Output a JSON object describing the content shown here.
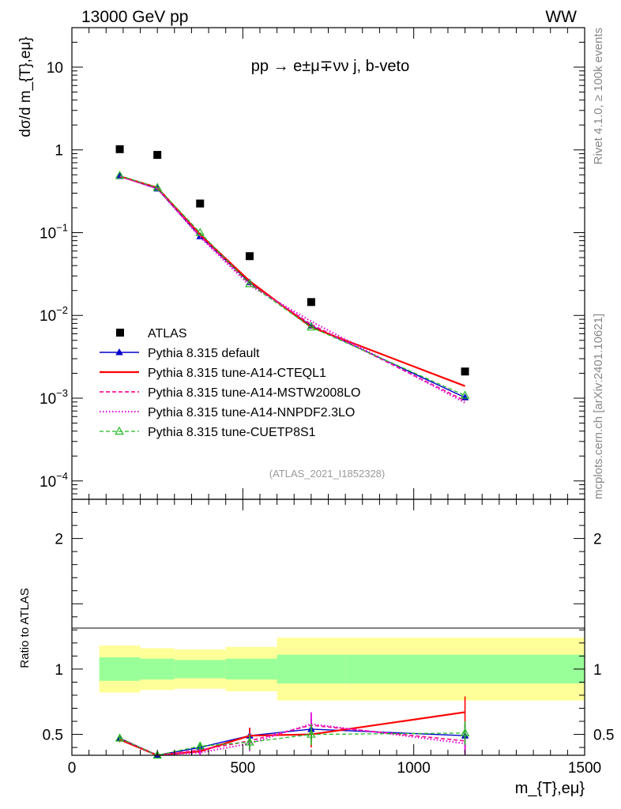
{
  "header": {
    "energy_label": "13000 GeV pp",
    "process_label": "WW"
  },
  "side_text": {
    "rivet": "Rivet 4.1.0, ≥ 100k events",
    "mcplots": "mcplots.cern.ch [arXiv:2401.10621]"
  },
  "chart_data": {
    "type": "line",
    "title": "pp → e±μ∓νν j, b-veto",
    "analysis_id": "(ATLAS_2021_I1852328)",
    "xlabel": "m_{T},eμ}",
    "ylabel_main": "dσ/d m_{T},eμ}",
    "ylabel_ratio": "Ratio to ATLAS",
    "xlim": [
      0,
      1500
    ],
    "ylim_main": [
      6e-05,
      30
    ],
    "ylim_ratio": [
      0.34,
      2.3
    ],
    "x_ticks": [
      0,
      500,
      1000,
      1500
    ],
    "x_tick_labels": [
      "0",
      "500",
      "1000",
      "1500"
    ],
    "y_tick_labels_main": [
      {
        "base": "10",
        "exp": "",
        "value": 10
      },
      {
        "base": "1",
        "exp": "",
        "value": 1
      },
      {
        "base": "10",
        "exp": "−1",
        "value": 0.1
      },
      {
        "base": "10",
        "exp": "−2",
        "value": 0.01
      },
      {
        "base": "10",
        "exp": "−3",
        "value": 0.001
      },
      {
        "base": "10",
        "exp": "−4",
        "value": 0.0001
      }
    ],
    "y_ticks_ratio": [
      0.5,
      1,
      2
    ],
    "y_tick_labels_ratio": [
      "0.5",
      "1",
      "2"
    ],
    "bins": [
      [
        80,
        200
      ],
      [
        200,
        300
      ],
      [
        300,
        450
      ],
      [
        450,
        600
      ],
      [
        600,
        800
      ],
      [
        800,
        1500
      ]
    ],
    "x_points": [
      140,
      250,
      375,
      520,
      700,
      1150
    ],
    "atlas": {
      "name": "ATLAS",
      "values": [
        1.02,
        0.87,
        0.225,
        0.052,
        0.0145,
        0.0021
      ],
      "band_inner": [
        [
          0.91,
          1.09
        ],
        [
          0.92,
          1.08
        ],
        [
          0.93,
          1.07
        ],
        [
          0.92,
          1.08
        ],
        [
          0.89,
          1.11
        ],
        [
          0.89,
          1.11
        ]
      ],
      "band_outer": [
        [
          0.82,
          1.18
        ],
        [
          0.84,
          1.16
        ],
        [
          0.85,
          1.15
        ],
        [
          0.83,
          1.17
        ],
        [
          0.76,
          1.24
        ],
        [
          0.76,
          1.24
        ]
      ]
    },
    "series": [
      {
        "name": "Pythia 8.315 default",
        "color": "#0000cc",
        "dash": "",
        "width": 1.4,
        "marker": "filled-triangle",
        "values": [
          0.48,
          0.34,
          0.09,
          0.025,
          0.0075,
          0.00102
        ],
        "ratio": [
          0.47,
          0.34,
          0.4,
          0.49,
          0.54,
          0.49
        ],
        "ratio_err": [
          0.02,
          0.02,
          0.03,
          0.06,
          0.08,
          0.09
        ]
      },
      {
        "name": "Pythia 8.315 tune-A14-CTEQL1",
        "color": "#ff0000",
        "dash": "",
        "width": 2.2,
        "marker": "none",
        "values": [
          0.48,
          0.35,
          0.095,
          0.026,
          0.0072,
          0.0014
        ],
        "ratio": [
          0.46,
          0.34,
          0.37,
          0.49,
          0.5,
          0.67
        ],
        "ratio_err": [
          0.02,
          0.02,
          0.03,
          0.06,
          0.1,
          0.12
        ]
      },
      {
        "name": "Pythia 8.315 tune-A14-MSTW2008LO",
        "color": "#ff1493",
        "dash": "5,3",
        "width": 1.8,
        "marker": "none",
        "values": [
          0.48,
          0.34,
          0.092,
          0.024,
          0.0078,
          0.00093
        ],
        "ratio": [
          0.47,
          0.34,
          0.38,
          0.45,
          0.57,
          0.45
        ],
        "ratio_err": [
          0.02,
          0.02,
          0.03,
          0.06,
          0.09,
          0.09
        ]
      },
      {
        "name": "Pythia 8.315 tune-A14-NNPDF2.3LO",
        "color": "#dd00dd",
        "dash": "1.5,2.5",
        "width": 2.0,
        "marker": "none",
        "values": [
          0.48,
          0.34,
          0.088,
          0.023,
          0.0085,
          0.00088
        ],
        "ratio": [
          0.47,
          0.34,
          0.36,
          0.43,
          0.58,
          0.43
        ],
        "ratio_err": [
          0.02,
          0.02,
          0.03,
          0.06,
          0.09,
          0.09
        ]
      },
      {
        "name": "Pythia 8.315 tune-CUETP8S1",
        "color": "#22bb22",
        "dash": "5,3",
        "width": 1.3,
        "marker": "open-triangle",
        "values": [
          0.49,
          0.35,
          0.1,
          0.024,
          0.0072,
          0.00108
        ],
        "ratio": [
          0.47,
          0.34,
          0.41,
          0.44,
          0.5,
          0.51
        ],
        "ratio_err": [
          0.02,
          0.02,
          0.03,
          0.06,
          0.08,
          0.09
        ]
      }
    ]
  }
}
